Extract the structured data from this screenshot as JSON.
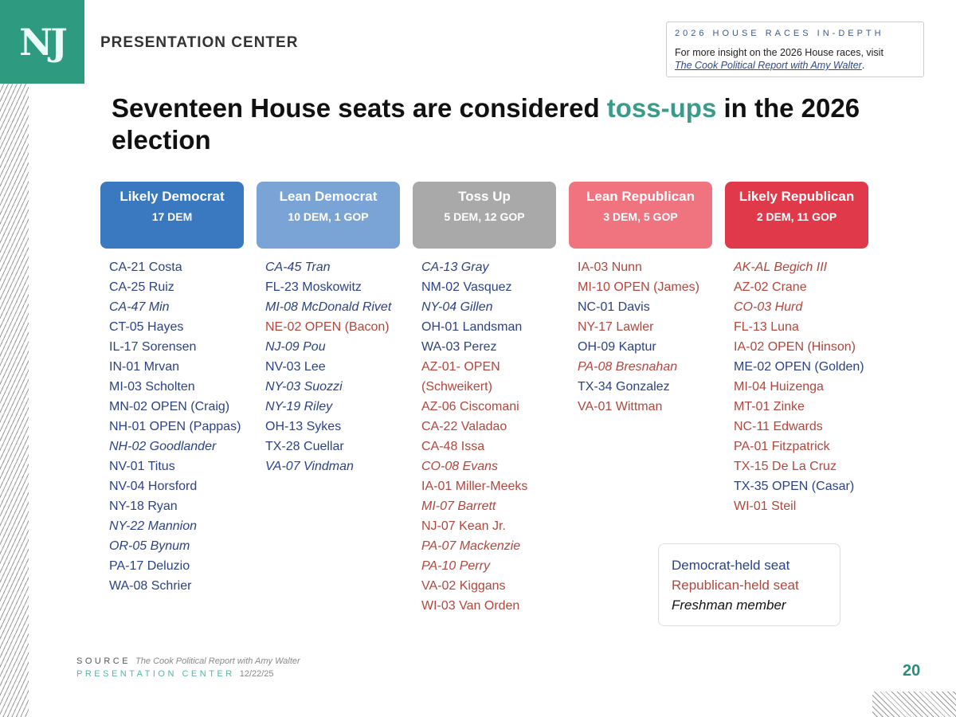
{
  "logo": "NJ",
  "brand": "PRESENTATION CENTER",
  "insight": {
    "kicker": "2026 HOUSE RACES IN-DEPTH",
    "text": "For more insight on the 2026 House races, visit",
    "link": "The Cook Political Report with Amy Walter",
    "end": "."
  },
  "title": {
    "pre": "Seventeen House seats are considered ",
    "highlight": "toss-ups",
    "post": " in the 2026 election"
  },
  "colors": {
    "dem": "#2b4384",
    "rep": "#b0473d",
    "accent": "#3a9b8a"
  },
  "columns": [
    {
      "name": "Likely Democrat",
      "count": "17 DEM",
      "color": "#3a78bf",
      "seats": [
        {
          "t": "CA-21 Costa",
          "p": "D"
        },
        {
          "t": "CA-25 Ruiz",
          "p": "D"
        },
        {
          "t": "CA-47 Min",
          "p": "D",
          "f": true
        },
        {
          "t": "CT-05 Hayes",
          "p": "D"
        },
        {
          "t": "IL-17 Sorensen",
          "p": "D"
        },
        {
          "t": "IN-01 Mrvan",
          "p": "D"
        },
        {
          "t": "MI-03 Scholten",
          "p": "D"
        },
        {
          "t": "MN-02 OPEN (Craig)",
          "p": "D"
        },
        {
          "t": "NH-01 OPEN (Pappas)",
          "p": "D"
        },
        {
          "t": "NH-02 Goodlander",
          "p": "D",
          "f": true
        },
        {
          "t": "NV-01 Titus",
          "p": "D"
        },
        {
          "t": "NV-04 Horsford",
          "p": "D"
        },
        {
          "t": "NY-18 Ryan",
          "p": "D"
        },
        {
          "t": "NY-22 Mannion",
          "p": "D",
          "f": true
        },
        {
          "t": "OR-05 Bynum",
          "p": "D",
          "f": true
        },
        {
          "t": "PA-17 Deluzio",
          "p": "D"
        },
        {
          "t": "WA-08 Schrier",
          "p": "D"
        }
      ]
    },
    {
      "name": "Lean Democrat",
      "count": "10 DEM, 1 GOP",
      "color": "#7aa4d6",
      "seats": [
        {
          "t": "CA-45 Tran",
          "p": "D",
          "f": true
        },
        {
          "t": "FL-23 Moskowitz",
          "p": "D"
        },
        {
          "t": "MI-08 McDonald Rivet",
          "p": "D",
          "f": true
        },
        {
          "t": "NE-02 OPEN (Bacon)",
          "p": "R"
        },
        {
          "t": "NJ-09 Pou",
          "p": "D",
          "f": true
        },
        {
          "t": "NV-03 Lee",
          "p": "D"
        },
        {
          "t": "NY-03 Suozzi",
          "p": "D",
          "f": true
        },
        {
          "t": "NY-19 Riley",
          "p": "D",
          "f": true
        },
        {
          "t": "OH-13 Sykes",
          "p": "D"
        },
        {
          "t": "TX-28 Cuellar",
          "p": "D"
        },
        {
          "t": "VA-07 Vindman",
          "p": "D",
          "f": true
        }
      ]
    },
    {
      "name": "Toss Up",
      "count": "5 DEM, 12 GOP",
      "color": "#a9a9a9",
      "seats": [
        {
          "t": "CA-13 Gray",
          "p": "D",
          "f": true
        },
        {
          "t": "NM-02 Vasquez",
          "p": "D"
        },
        {
          "t": "NY-04 Gillen",
          "p": "D",
          "f": true
        },
        {
          "t": "OH-01 Landsman",
          "p": "D"
        },
        {
          "t": "WA-03 Perez",
          "p": "D"
        },
        {
          "t": "AZ-01- OPEN (Schweikert)",
          "p": "R"
        },
        {
          "t": "AZ-06 Ciscomani",
          "p": "R"
        },
        {
          "t": "CA-22 Valadao",
          "p": "R"
        },
        {
          "t": "CA-48 Issa",
          "p": "R"
        },
        {
          "t": "CO-08 Evans",
          "p": "R",
          "f": true
        },
        {
          "t": "IA-01 Miller-Meeks",
          "p": "R"
        },
        {
          "t": "MI-07 Barrett",
          "p": "R",
          "f": true
        },
        {
          "t": "NJ-07 Kean Jr.",
          "p": "R"
        },
        {
          "t": "PA-07 Mackenzie",
          "p": "R",
          "f": true
        },
        {
          "t": "PA-10 Perry",
          "p": "R",
          "f": true
        },
        {
          "t": "VA-02 Kiggans",
          "p": "R"
        },
        {
          "t": "WI-03 Van Orden",
          "p": "R"
        }
      ]
    },
    {
      "name": "Lean Republican",
      "count": "3 DEM, 5 GOP",
      "color": "#ef7480",
      "seats": [
        {
          "t": "IA-03 Nunn",
          "p": "R"
        },
        {
          "t": "MI-10 OPEN (James)",
          "p": "R"
        },
        {
          "t": "NC-01 Davis",
          "p": "D"
        },
        {
          "t": "NY-17 Lawler",
          "p": "R"
        },
        {
          "t": "OH-09 Kaptur",
          "p": "D"
        },
        {
          "t": "PA-08 Bresnahan",
          "p": "R",
          "f": true
        },
        {
          "t": "TX-34 Gonzalez",
          "p": "D"
        },
        {
          "t": "VA-01 Wittman",
          "p": "R"
        }
      ]
    },
    {
      "name": "Likely Republican",
      "count": "2 DEM, 11 GOP",
      "color": "#e03a4a",
      "seats": [
        {
          "t": "AK-AL Begich III",
          "p": "R",
          "f": true
        },
        {
          "t": "AZ-02 Crane",
          "p": "R"
        },
        {
          "t": "CO-03 Hurd",
          "p": "R",
          "f": true
        },
        {
          "t": "FL-13 Luna",
          "p": "R"
        },
        {
          "t": "IA-02 OPEN (Hinson)",
          "p": "R"
        },
        {
          "t": "ME-02 OPEN (Golden)",
          "p": "D"
        },
        {
          "t": "MI-04 Huizenga",
          "p": "R"
        },
        {
          "t": "MT-01 Zinke",
          "p": "R"
        },
        {
          "t": "NC-11 Edwards",
          "p": "R"
        },
        {
          "t": "PA-01 Fitzpatrick",
          "p": "R"
        },
        {
          "t": "TX-15 De La Cruz",
          "p": "R"
        },
        {
          "t": "TX-35 OPEN (Casar)",
          "p": "D"
        },
        {
          "t": "WI-01 Steil",
          "p": "R"
        }
      ]
    }
  ],
  "legend": {
    "dem": "Democrat-held seat",
    "rep": "Republican-held seat",
    "fresh": "Freshman member"
  },
  "footer": {
    "source_label": "SOURCE",
    "source": "The Cook Political Report with Amy Walter",
    "center_label": "PRESENTATION CENTER",
    "date": "12/22/25"
  },
  "page_number": "20"
}
